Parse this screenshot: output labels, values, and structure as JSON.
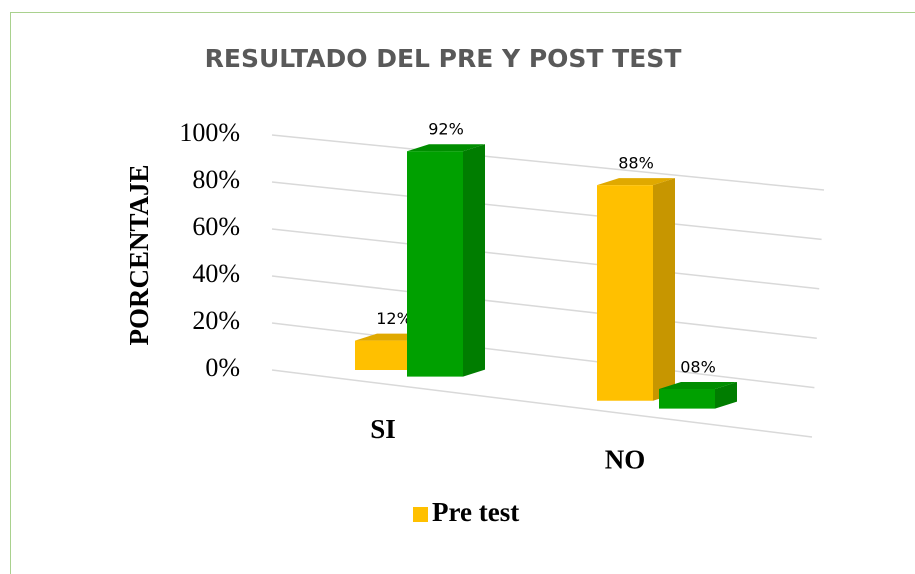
{
  "chart_data": {
    "type": "bar3d",
    "title": "RESULTADO DEL PRE Y POST TEST",
    "y_label": "PORCENTAJE",
    "categories": [
      "SI",
      "NO"
    ],
    "series": [
      {
        "name": "Pre test",
        "color": "#ffc000",
        "values": [
          12,
          88
        ],
        "value_labels": [
          "12%",
          "88%"
        ]
      },
      {
        "color": "#00a000",
        "values": [
          92,
          8
        ],
        "value_labels": [
          "92%",
          "08%"
        ]
      }
    ],
    "ylim": [
      0,
      100
    ],
    "yticks": [
      {
        "value": 0,
        "label": "0%"
      },
      {
        "value": 20,
        "label": "20%"
      },
      {
        "value": 40,
        "label": "40%"
      },
      {
        "value": 60,
        "label": "60%"
      },
      {
        "value": 80,
        "label": "80%"
      },
      {
        "value": 100,
        "label": "100%"
      }
    ],
    "grid": true,
    "legend": "bottom"
  }
}
